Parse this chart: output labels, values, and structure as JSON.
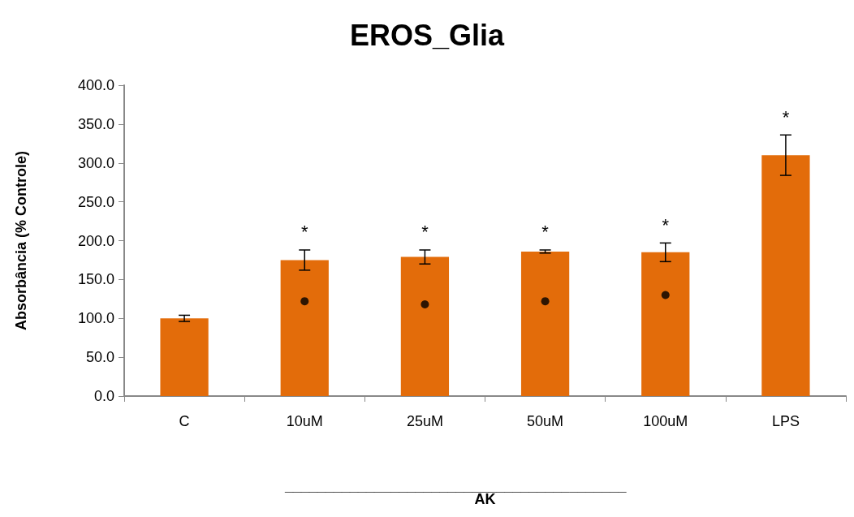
{
  "chart_data": {
    "type": "bar",
    "title": "EROS_Glia",
    "ylabel": "Absorbância (% Controle)",
    "xlabel": "AK",
    "categories": [
      "C",
      "10uM",
      "25uM",
      "50uM",
      "100uM",
      "LPS"
    ],
    "series": [
      {
        "color": "#e36c0a",
        "values": [
          100,
          175,
          179,
          186,
          185,
          310
        ],
        "errors": [
          4,
          13,
          9,
          2,
          12,
          26
        ],
        "value_labels": [
          null,
          "*",
          "*",
          "*",
          "*",
          "*"
        ]
      },
      {
        "type": "scatter",
        "color": "#000000",
        "marker": "circle",
        "x": [
          "10uM",
          "25uM",
          "50uM",
          "100uM"
        ],
        "values": [
          122,
          118,
          122,
          130
        ]
      }
    ],
    "ylim": [
      0,
      400
    ],
    "yticks": [
      {
        "value": 0,
        "label": "0.0"
      },
      {
        "value": 50,
        "label": "50.0"
      },
      {
        "value": 100,
        "label": "100.0"
      },
      {
        "value": 150,
        "label": "150.0"
      },
      {
        "value": 200,
        "label": "200.0"
      },
      {
        "value": 250,
        "label": "250.0"
      },
      {
        "value": 300,
        "label": "300.0"
      },
      {
        "value": 350,
        "label": "350.0"
      },
      {
        "value": 400,
        "label": "400.0"
      }
    ],
    "grid": false,
    "annotations": [
      "__________________________________________"
    ]
  }
}
